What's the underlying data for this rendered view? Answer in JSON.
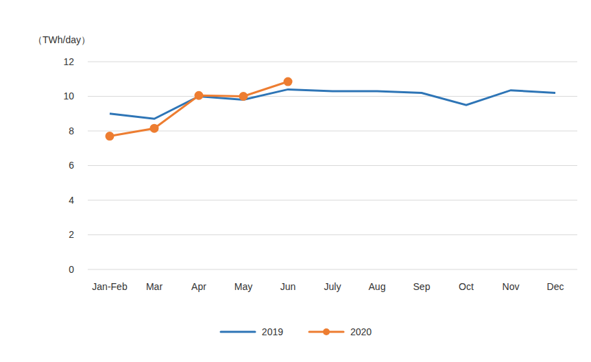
{
  "chart_data": {
    "type": "line",
    "y_label": "（TWh/day）",
    "categories": [
      "Jan-Feb",
      "Mar",
      "Apr",
      "May",
      "Jun",
      "July",
      "Aug",
      "Sep",
      "Oct",
      "Nov",
      "Dec"
    ],
    "series": [
      {
        "name": "2019",
        "color": "#2E75B6",
        "marker": "none",
        "values": [
          9.0,
          8.7,
          10.0,
          9.8,
          10.4,
          10.3,
          10.3,
          10.2,
          9.5,
          10.35,
          10.2
        ]
      },
      {
        "name": "2020",
        "color": "#ED7D31",
        "marker": "circle",
        "values": [
          7.7,
          8.15,
          10.05,
          10.0,
          10.85,
          null,
          null,
          null,
          null,
          null,
          null
        ]
      }
    ],
    "ylim": [
      0,
      12
    ],
    "yticks": [
      0,
      2,
      4,
      6,
      8,
      10,
      12
    ],
    "grid": true,
    "legend": "bottom"
  }
}
